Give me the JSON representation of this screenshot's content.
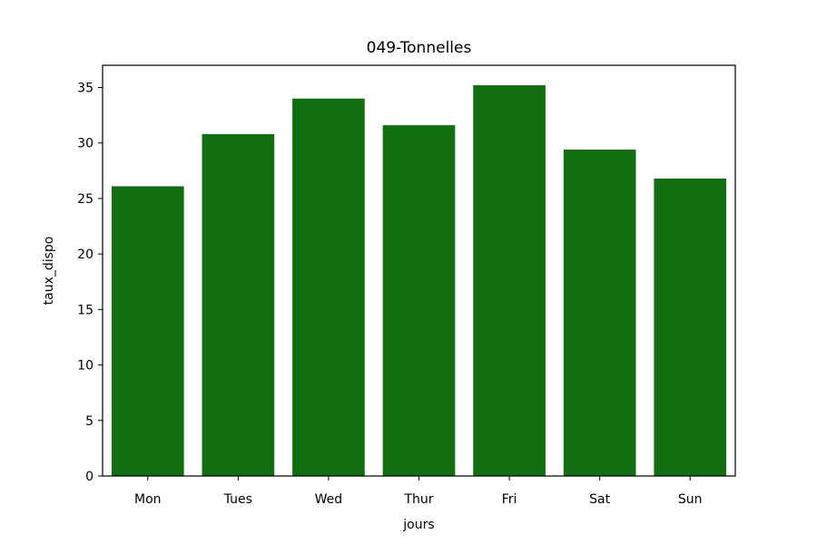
{
  "chart_data": {
    "type": "bar",
    "title": "049-Tonnelles",
    "xlabel": "jours",
    "ylabel": "taux_dispo",
    "categories": [
      "Mon",
      "Tues",
      "Wed",
      "Thur",
      "Fri",
      "Sat",
      "Sun"
    ],
    "values": [
      26.1,
      30.8,
      34.0,
      31.6,
      35.2,
      29.4,
      26.8
    ],
    "ylim": [
      0,
      37
    ],
    "yticks": [
      0,
      5,
      10,
      15,
      20,
      25,
      30,
      35
    ],
    "bar_color": "#107010",
    "grid": false,
    "legend": "none"
  }
}
